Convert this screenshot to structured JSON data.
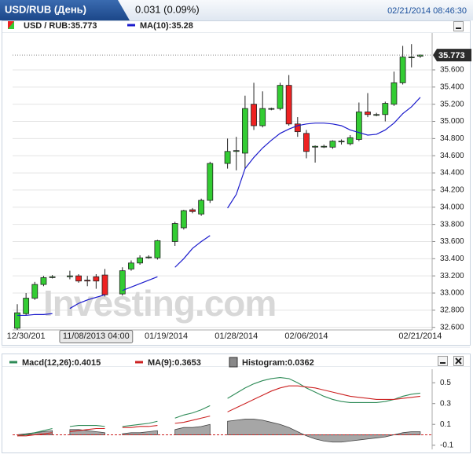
{
  "header": {
    "title": "USD/RUB (День)",
    "change": "0.031 (0.09%)",
    "datetime": "02/21/2014 08:46:30"
  },
  "watermark": "Investing.com",
  "chart_data": [
    {
      "type": "candlestick",
      "categories": [
        null,
        "12/30/201",
        null,
        null,
        null,
        null,
        null,
        null,
        null,
        "11/08/2013 04:00",
        null,
        null,
        null,
        null,
        null,
        null,
        null,
        "01/19/2014",
        null,
        null,
        null,
        null,
        null,
        null,
        null,
        "01/28/2014",
        null,
        null,
        null,
        null,
        null,
        null,
        null,
        "02/06/2014",
        null,
        null,
        null,
        null,
        null,
        null,
        null,
        null,
        null,
        null,
        null,
        null,
        "02/21/2014"
      ],
      "series": [
        {
          "name": "USD / RUB:35.773",
          "up_color": "#33cc33",
          "down_color": "#ee2222",
          "open": [
            32.59,
            32.76,
            32.94,
            33.1,
            33.18,
            null,
            33.19,
            33.2,
            33.15,
            33.19,
            33.21,
            null,
            32.99,
            33.28,
            33.35,
            33.42,
            33.41,
            null,
            33.6,
            33.76,
            33.97,
            33.92,
            34.08,
            null,
            34.51,
            34.65,
            34.63,
            35.2,
            34.95,
            35.15,
            35.15,
            35.42,
            34.97,
            34.86,
            34.7,
            34.71,
            34.7,
            34.77,
            34.74,
            34.79,
            35.11,
            35.08,
            35.08,
            35.2,
            35.45,
            35.75,
            35.76
          ],
          "high": [
            32.87,
            33.0,
            33.13,
            33.2,
            33.21,
            null,
            33.26,
            33.22,
            33.2,
            33.22,
            33.28,
            null,
            33.3,
            33.38,
            33.44,
            33.44,
            33.62,
            null,
            33.83,
            33.97,
            33.99,
            34.1,
            34.53,
            null,
            34.8,
            34.82,
            35.3,
            35.45,
            35.35,
            35.16,
            35.45,
            35.54,
            35.05,
            34.9,
            34.72,
            34.73,
            34.78,
            34.79,
            34.84,
            35.22,
            35.33,
            35.1,
            35.23,
            35.58,
            35.88,
            35.9,
            35.78
          ],
          "low": [
            32.57,
            32.74,
            32.92,
            33.08,
            33.17,
            null,
            33.16,
            33.12,
            33.08,
            33.05,
            32.96,
            null,
            32.97,
            33.26,
            33.33,
            33.4,
            33.39,
            null,
            33.55,
            33.74,
            33.93,
            33.9,
            34.05,
            null,
            34.45,
            34.43,
            34.45,
            34.9,
            34.93,
            35.13,
            35.13,
            34.95,
            34.82,
            34.57,
            34.52,
            34.69,
            34.68,
            34.73,
            34.72,
            34.77,
            35.05,
            35.06,
            35.0,
            35.18,
            35.43,
            35.63,
            35.74
          ],
          "close": [
            32.77,
            32.94,
            33.1,
            33.18,
            33.19,
            null,
            33.2,
            33.14,
            33.14,
            33.14,
            32.98,
            null,
            33.26,
            33.35,
            33.41,
            33.42,
            33.61,
            null,
            33.81,
            33.96,
            33.95,
            34.08,
            34.51,
            null,
            34.65,
            34.66,
            35.15,
            34.95,
            35.15,
            35.15,
            35.42,
            34.97,
            34.88,
            34.65,
            34.71,
            34.71,
            34.77,
            34.77,
            34.81,
            35.11,
            35.08,
            35.08,
            35.21,
            35.45,
            35.75,
            35.75,
            35.773
          ]
        },
        {
          "name": "MA(10):35.28",
          "color": "#1a1acc",
          "values": [
            32.74,
            32.74,
            32.75,
            32.75,
            32.76,
            null,
            32.82,
            32.88,
            32.92,
            32.95,
            32.98,
            null,
            33.03,
            33.07,
            33.11,
            33.15,
            33.19,
            null,
            33.3,
            33.4,
            33.52,
            33.6,
            33.67,
            null,
            33.99,
            34.15,
            34.45,
            34.58,
            34.69,
            34.78,
            34.86,
            34.91,
            34.95,
            34.97,
            34.98,
            34.98,
            34.97,
            34.95,
            34.9,
            34.87,
            34.84,
            34.85,
            34.9,
            34.98,
            35.09,
            35.17,
            35.28
          ]
        }
      ],
      "ylim": [
        32.57,
        36.03
      ],
      "yticks": [
        {
          "value": 32.6,
          "label": "32.600"
        },
        {
          "value": 32.8,
          "label": "32.800"
        },
        {
          "value": 33.0,
          "label": "33.000"
        },
        {
          "value": 33.2,
          "label": "33.200"
        },
        {
          "value": 33.4,
          "label": "33.400"
        },
        {
          "value": 33.6,
          "label": "33.600"
        },
        {
          "value": 33.8,
          "label": "33.800"
        },
        {
          "value": 34.0,
          "label": "34.000"
        },
        {
          "value": 34.2,
          "label": "34.200"
        },
        {
          "value": 34.4,
          "label": "34.400"
        },
        {
          "value": 34.6,
          "label": "34.600"
        },
        {
          "value": 34.8,
          "label": "34.800"
        },
        {
          "value": 35.0,
          "label": "35.000"
        },
        {
          "value": 35.2,
          "label": "35.200"
        },
        {
          "value": 35.4,
          "label": "35.400"
        },
        {
          "value": 35.6,
          "label": "35.600"
        }
      ],
      "grid": true
    },
    {
      "type": "line",
      "series": [
        {
          "name": "Macd(12,26):0.4015",
          "color": "#2e8b57",
          "values": [
            -0.01,
            0.0,
            0.02,
            0.04,
            0.06,
            null,
            0.08,
            0.09,
            0.09,
            0.09,
            0.08,
            null,
            0.08,
            0.09,
            0.1,
            0.11,
            0.13,
            null,
            0.16,
            0.19,
            0.21,
            0.24,
            0.28,
            null,
            0.35,
            0.4,
            0.45,
            0.49,
            0.52,
            0.54,
            0.55,
            0.54,
            0.5,
            0.45,
            0.41,
            0.37,
            0.34,
            0.32,
            0.31,
            0.31,
            0.31,
            0.31,
            0.32,
            0.34,
            0.37,
            0.39,
            0.4
          ]
        },
        {
          "name": "MA(9):0.3653",
          "color": "#cc2222",
          "values": [
            -0.01,
            -0.01,
            0.0,
            0.01,
            0.02,
            null,
            0.03,
            0.04,
            0.05,
            0.06,
            0.06,
            null,
            0.07,
            0.07,
            0.08,
            0.08,
            0.09,
            null,
            0.11,
            0.12,
            0.14,
            0.16,
            0.18,
            null,
            0.22,
            0.26,
            0.3,
            0.34,
            0.38,
            0.42,
            0.45,
            0.47,
            0.47,
            0.46,
            0.45,
            0.43,
            0.41,
            0.39,
            0.37,
            0.36,
            0.35,
            0.34,
            0.34,
            0.34,
            0.35,
            0.36,
            0.37
          ]
        },
        {
          "name": "Histogram:0.0362",
          "color": "#888888",
          "area": true,
          "values": [
            0.0,
            0.01,
            0.02,
            0.03,
            0.04,
            null,
            0.05,
            0.05,
            0.04,
            0.03,
            0.02,
            null,
            0.01,
            0.02,
            0.02,
            0.03,
            0.04,
            null,
            0.05,
            0.07,
            0.07,
            0.08,
            0.1,
            null,
            0.13,
            0.14,
            0.15,
            0.15,
            0.14,
            0.12,
            0.1,
            0.07,
            0.03,
            -0.01,
            -0.04,
            -0.06,
            -0.07,
            -0.07,
            -0.06,
            -0.05,
            -0.04,
            -0.03,
            -0.02,
            0.0,
            0.02,
            0.03,
            0.03
          ]
        }
      ],
      "ylim": [
        -0.14,
        0.63
      ],
      "yticks": [
        0.5,
        0.3,
        0.1,
        -0.1
      ]
    }
  ]
}
